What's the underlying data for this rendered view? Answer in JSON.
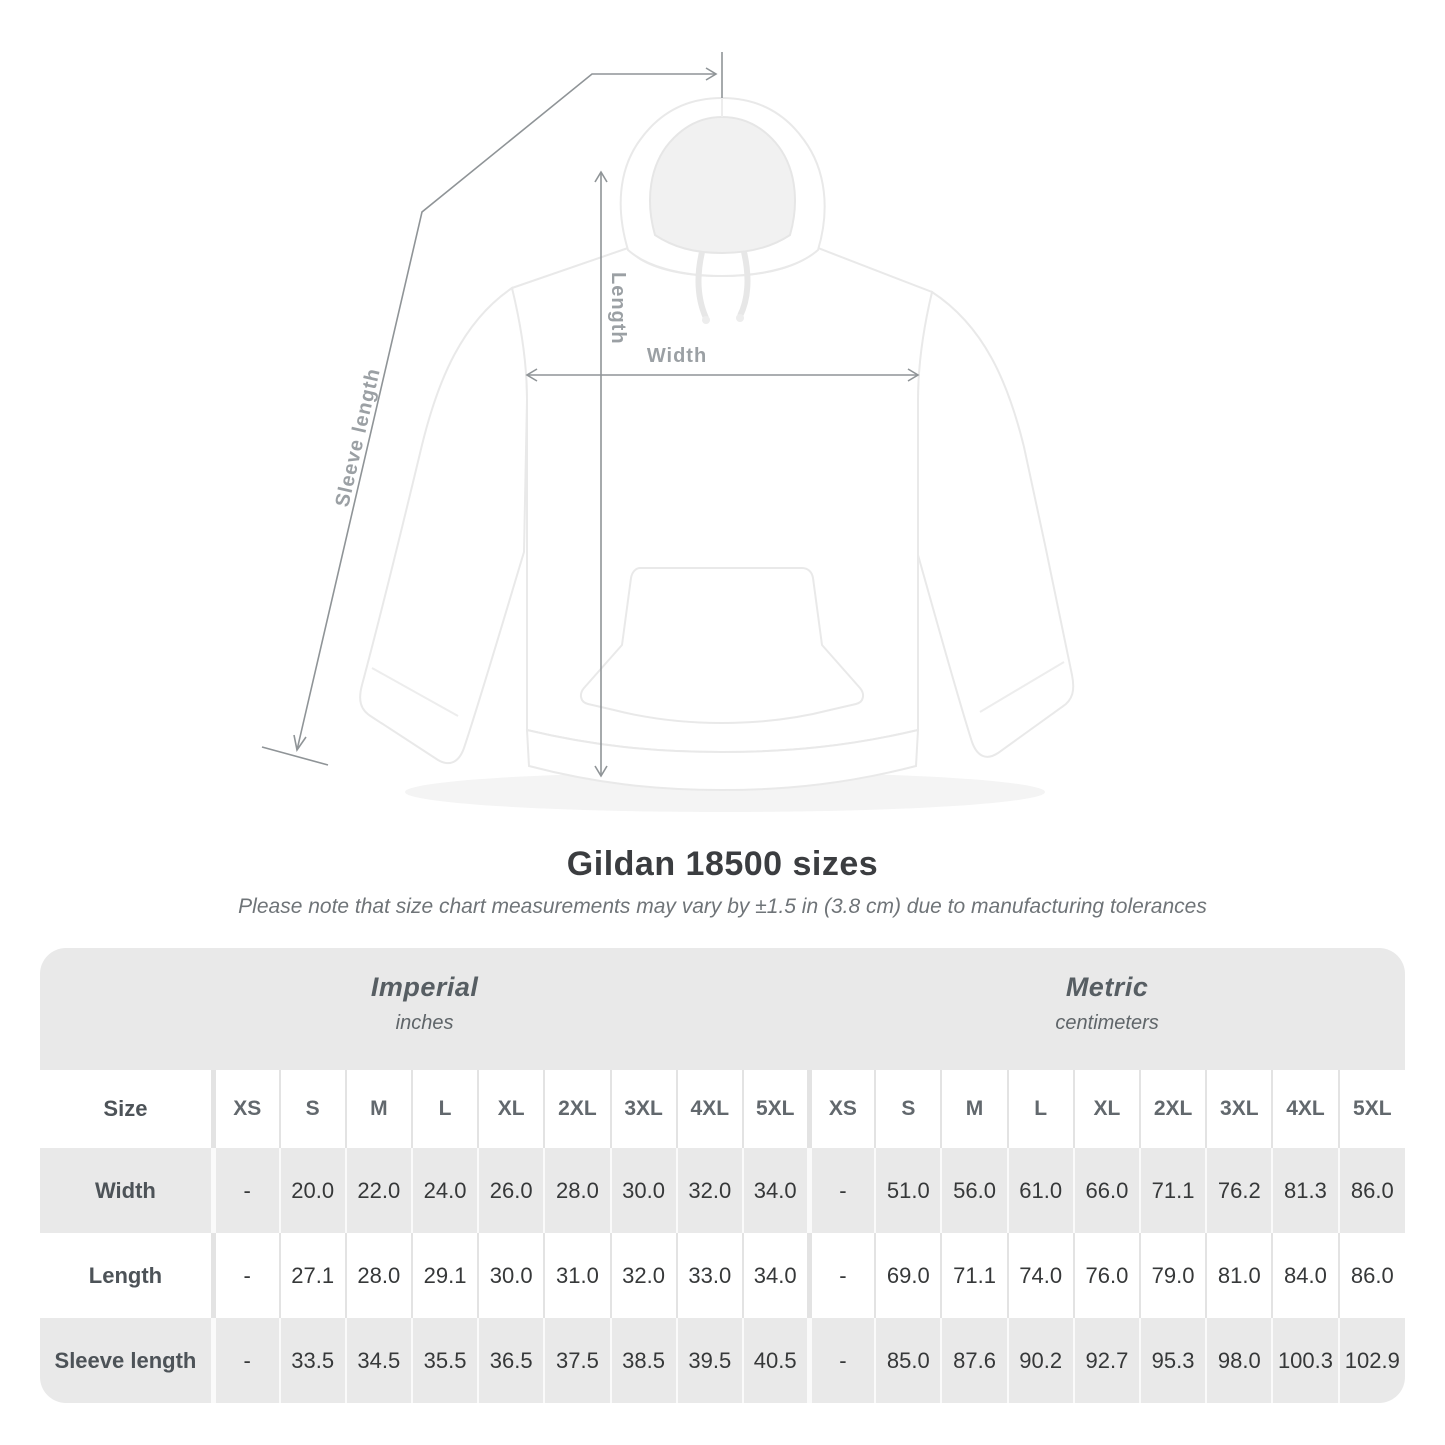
{
  "diagram": {
    "labels": {
      "length": "Length",
      "width": "Width",
      "sleeve": "Sleeve length"
    }
  },
  "title": "Gildan 18500 sizes",
  "subtitle": "Please note that size chart measurements may vary by ±1.5 in (3.8 cm) due to manufacturing tolerances",
  "table": {
    "unit_groups": [
      {
        "name": "Imperial",
        "unit": "inches"
      },
      {
        "name": "Metric",
        "unit": "centimeters"
      }
    ],
    "size_label": "Size",
    "sizes": [
      "XS",
      "S",
      "M",
      "L",
      "XL",
      "2XL",
      "3XL",
      "4XL",
      "5XL"
    ],
    "rows": [
      {
        "label": "Width",
        "imperial": [
          "-",
          "20.0",
          "22.0",
          "24.0",
          "26.0",
          "28.0",
          "30.0",
          "32.0",
          "34.0"
        ],
        "metric": [
          "-",
          "51.0",
          "56.0",
          "61.0",
          "66.0",
          "71.1",
          "76.2",
          "81.3",
          "86.0"
        ]
      },
      {
        "label": "Length",
        "imperial": [
          "-",
          "27.1",
          "28.0",
          "29.1",
          "30.0",
          "31.0",
          "32.0",
          "33.0",
          "34.0"
        ],
        "metric": [
          "-",
          "69.0",
          "71.1",
          "74.0",
          "76.0",
          "79.0",
          "81.0",
          "84.0",
          "86.0"
        ]
      },
      {
        "label": "Sleeve length",
        "imperial": [
          "-",
          "33.5",
          "34.5",
          "35.5",
          "36.5",
          "37.5",
          "38.5",
          "39.5",
          "40.5"
        ],
        "metric": [
          "-",
          "85.0",
          "87.6",
          "90.2",
          "92.7",
          "95.3",
          "98.0",
          "100.3",
          "102.9"
        ]
      }
    ]
  },
  "colors": {
    "table_band_gray": "#e9e9e9",
    "row_white": "#ffffff",
    "dimension_line": "#8f9497",
    "dimension_label": "#9ba0a4",
    "title_text": "#3b3d40",
    "value_text": "#363839"
  }
}
